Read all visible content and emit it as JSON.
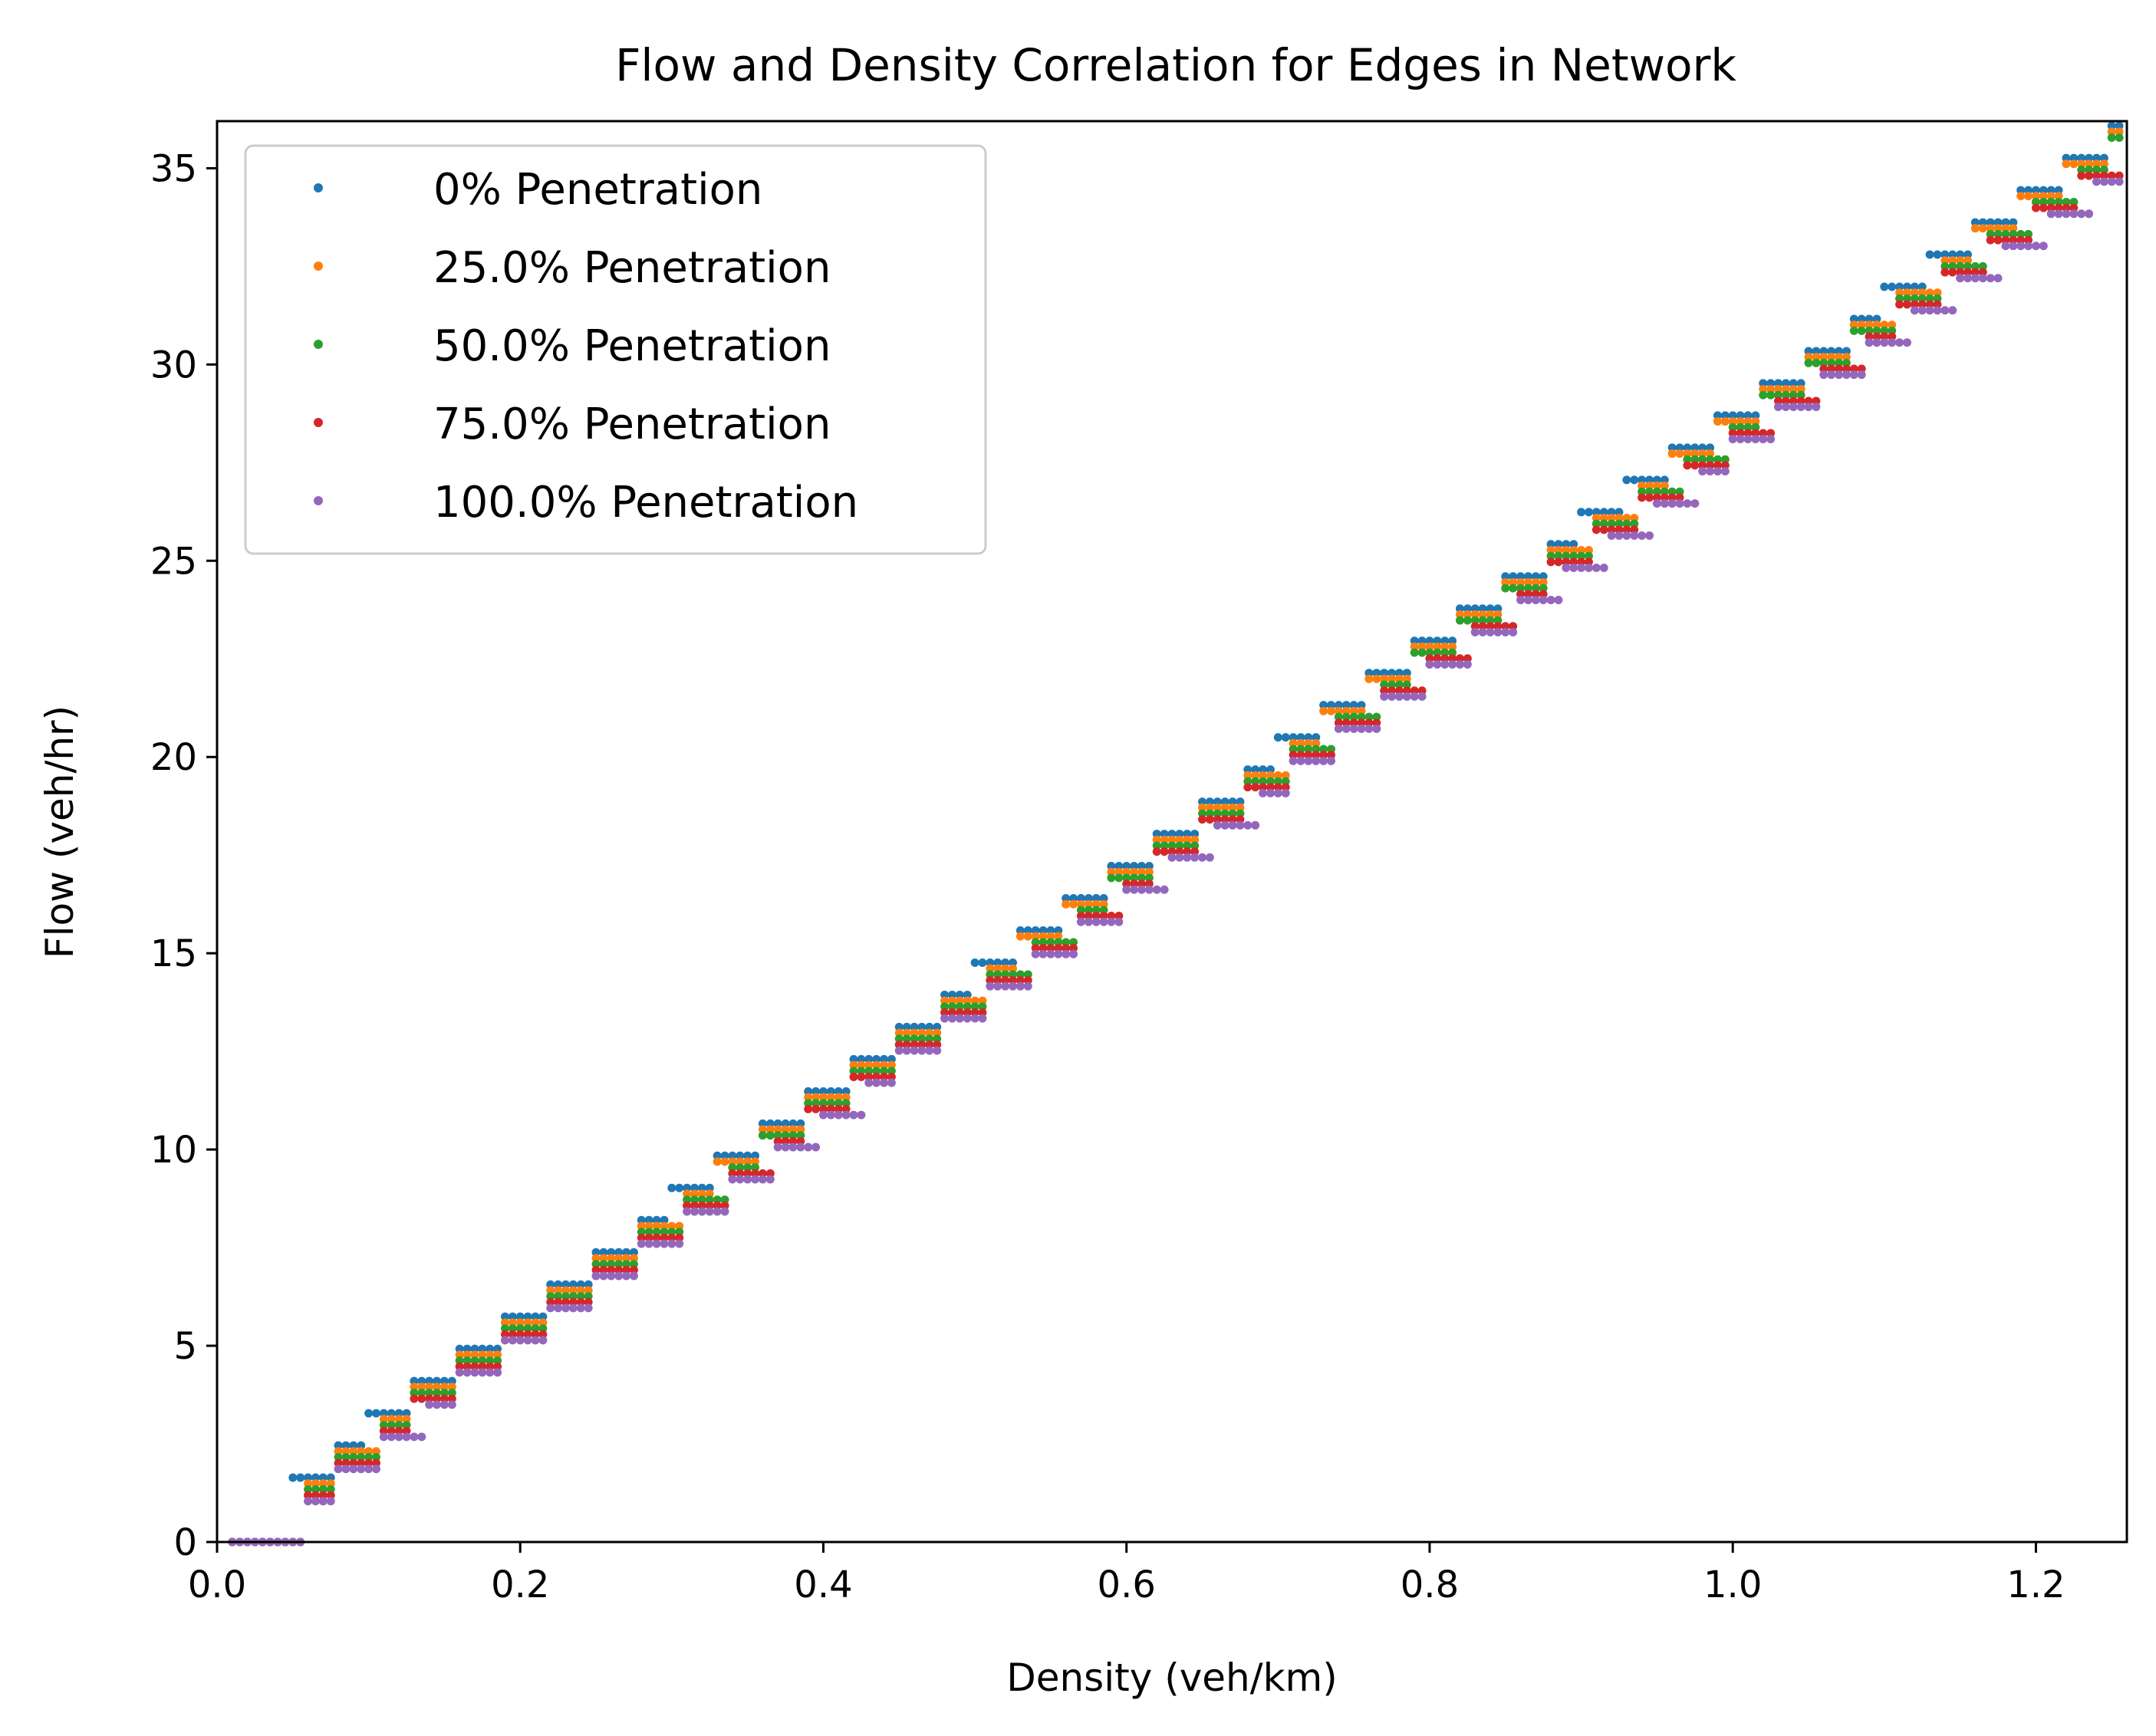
{
  "chart_data": {
    "type": "scatter",
    "title": "Flow and Density Correlation for Edges in Network",
    "xlabel": "Density (veh/km)",
    "ylabel": "Flow (veh/hr)",
    "xlim": [
      0,
      1.26
    ],
    "ylim": [
      0,
      36.2
    ],
    "xticks": [
      "0.0",
      "0.2",
      "0.4",
      "0.6",
      "0.8",
      "1.0",
      "1.2"
    ],
    "xtick_values": [
      0,
      0.2,
      0.4,
      0.6,
      0.8,
      1.0,
      1.2
    ],
    "yticks": [
      "0",
      "5",
      "10",
      "15",
      "20",
      "25",
      "30",
      "35"
    ],
    "ytick_values": [
      0,
      5,
      10,
      15,
      20,
      25,
      30,
      35
    ],
    "grid": false,
    "legend_position": "upper-left",
    "series": [
      {
        "name": "0% Penetration",
        "color": "#1f77b4",
        "slope": 28.72,
        "offset": 0.0,
        "x": [
          0.01,
          0.02,
          0.03,
          0.04,
          0.05,
          0.06,
          0.07,
          0.08,
          0.09,
          0.1,
          0.11,
          0.12,
          0.13,
          0.14,
          0.15,
          0.16,
          0.17,
          0.18,
          0.19,
          0.2,
          0.21,
          0.22,
          0.23,
          0.24,
          0.25,
          0.26,
          0.27,
          0.28,
          0.29,
          0.3,
          0.31,
          0.32,
          0.33,
          0.34,
          0.35,
          0.36,
          0.37,
          0.38,
          0.39,
          0.4,
          0.41,
          0.42,
          0.43,
          0.44,
          0.45,
          0.46,
          0.47,
          0.48,
          0.49,
          0.5,
          0.51,
          0.52,
          0.53,
          0.54,
          0.55,
          0.56,
          0.57,
          0.58,
          0.59,
          0.6,
          0.61,
          0.62,
          0.63,
          0.64,
          0.65,
          0.66,
          0.67,
          0.68,
          0.69,
          0.7,
          0.71,
          0.72,
          0.73,
          0.74,
          0.75,
          0.76,
          0.77,
          0.78,
          0.79,
          0.8,
          0.81,
          0.82,
          0.83,
          0.84,
          0.85,
          0.86,
          0.87,
          0.88,
          0.89,
          0.9,
          0.91,
          0.92,
          0.93,
          0.94,
          0.95,
          0.96,
          0.97,
          0.98,
          0.99,
          1.0,
          1.01,
          1.02,
          1.03,
          1.04,
          1.05,
          1.06,
          1.07,
          1.08,
          1.09,
          1.1,
          1.11,
          1.12,
          1.13,
          1.14,
          1.15,
          1.16,
          1.17,
          1.18,
          1.19,
          1.2,
          1.21,
          1.22,
          1.23,
          1.24,
          1.25
        ]
      },
      {
        "name": "25.0% Penetration",
        "color": "#ff7f0e",
        "slope": 28.65,
        "offset": 0.0,
        "x": [
          0.01,
          0.02,
          0.03,
          0.04,
          0.05,
          0.06,
          0.07,
          0.08,
          0.09,
          0.1,
          0.11,
          0.12,
          0.13,
          0.14,
          0.15,
          0.16,
          0.17,
          0.18,
          0.19,
          0.2,
          0.21,
          0.22,
          0.23,
          0.24,
          0.25,
          0.26,
          0.27,
          0.28,
          0.29,
          0.3,
          0.31,
          0.32,
          0.33,
          0.34,
          0.35,
          0.36,
          0.37,
          0.38,
          0.39,
          0.4,
          0.41,
          0.42,
          0.43,
          0.44,
          0.45,
          0.46,
          0.47,
          0.48,
          0.49,
          0.5,
          0.51,
          0.52,
          0.53,
          0.54,
          0.55,
          0.56,
          0.57,
          0.58,
          0.59,
          0.6,
          0.61,
          0.62,
          0.63,
          0.64,
          0.65,
          0.66,
          0.67,
          0.68,
          0.69,
          0.7,
          0.71,
          0.72,
          0.73,
          0.74,
          0.75,
          0.76,
          0.77,
          0.78,
          0.79,
          0.8,
          0.81,
          0.82,
          0.83,
          0.84,
          0.85,
          0.86,
          0.87,
          0.88,
          0.89,
          0.9,
          0.91,
          0.92,
          0.93,
          0.94,
          0.95,
          0.96,
          0.97,
          0.98,
          0.99,
          1.0,
          1.01,
          1.02,
          1.03,
          1.04,
          1.05,
          1.06,
          1.07,
          1.08,
          1.09,
          1.1,
          1.11,
          1.12,
          1.13,
          1.14,
          1.15,
          1.16,
          1.17,
          1.18,
          1.19,
          1.2,
          1.21,
          1.22,
          1.23,
          1.24,
          1.25
        ]
      },
      {
        "name": "50.0% Penetration",
        "color": "#2ca02c",
        "slope": 28.55,
        "offset": 0.0,
        "x": [
          0.01,
          0.02,
          0.03,
          0.04,
          0.05,
          0.06,
          0.07,
          0.08,
          0.09,
          0.1,
          0.11,
          0.12,
          0.13,
          0.14,
          0.15,
          0.16,
          0.17,
          0.18,
          0.19,
          0.2,
          0.21,
          0.22,
          0.23,
          0.24,
          0.25,
          0.26,
          0.27,
          0.28,
          0.29,
          0.3,
          0.31,
          0.32,
          0.33,
          0.34,
          0.35,
          0.36,
          0.37,
          0.38,
          0.39,
          0.4,
          0.41,
          0.42,
          0.43,
          0.44,
          0.45,
          0.46,
          0.47,
          0.48,
          0.49,
          0.5,
          0.51,
          0.52,
          0.53,
          0.54,
          0.55,
          0.56,
          0.57,
          0.58,
          0.59,
          0.6,
          0.61,
          0.62,
          0.63,
          0.64,
          0.65,
          0.66,
          0.67,
          0.68,
          0.69,
          0.7,
          0.71,
          0.72,
          0.73,
          0.74,
          0.75,
          0.76,
          0.77,
          0.78,
          0.79,
          0.8,
          0.81,
          0.82,
          0.83,
          0.84,
          0.85,
          0.86,
          0.87,
          0.88,
          0.89,
          0.9,
          0.91,
          0.92,
          0.93,
          0.94,
          0.95,
          0.96,
          0.97,
          0.98,
          0.99,
          1.0,
          1.01,
          1.02,
          1.03,
          1.04,
          1.05,
          1.06,
          1.07,
          1.08,
          1.09,
          1.1,
          1.11,
          1.12,
          1.13,
          1.14,
          1.15,
          1.16,
          1.17,
          1.18,
          1.19,
          1.2,
          1.21,
          1.22,
          1.23,
          1.24,
          1.25
        ]
      },
      {
        "name": "75.0% Penetration",
        "color": "#d62728",
        "slope": 28.45,
        "offset": 0.0,
        "x": [
          0.01,
          0.02,
          0.03,
          0.04,
          0.05,
          0.06,
          0.07,
          0.08,
          0.09,
          0.1,
          0.11,
          0.12,
          0.13,
          0.14,
          0.15,
          0.16,
          0.17,
          0.18,
          0.19,
          0.2,
          0.21,
          0.22,
          0.23,
          0.24,
          0.25,
          0.26,
          0.27,
          0.28,
          0.29,
          0.3,
          0.31,
          0.32,
          0.33,
          0.34,
          0.35,
          0.36,
          0.37,
          0.38,
          0.39,
          0.4,
          0.41,
          0.42,
          0.43,
          0.44,
          0.45,
          0.46,
          0.47,
          0.48,
          0.49,
          0.5,
          0.51,
          0.52,
          0.53,
          0.54,
          0.55,
          0.56,
          0.57,
          0.58,
          0.59,
          0.6,
          0.61,
          0.62,
          0.63,
          0.64,
          0.65,
          0.66,
          0.67,
          0.68,
          0.69,
          0.7,
          0.71,
          0.72,
          0.73,
          0.74,
          0.75,
          0.76,
          0.77,
          0.78,
          0.79,
          0.8,
          0.81,
          0.82,
          0.83,
          0.84,
          0.85,
          0.86,
          0.87,
          0.88,
          0.89,
          0.9,
          0.91,
          0.92,
          0.93,
          0.94,
          0.95,
          0.96,
          0.97,
          0.98,
          0.99,
          1.0,
          1.01,
          1.02,
          1.03,
          1.04,
          1.05,
          1.06,
          1.07,
          1.08,
          1.09,
          1.1,
          1.11,
          1.12,
          1.13,
          1.14,
          1.15,
          1.16,
          1.17,
          1.18,
          1.19,
          1.2,
          1.21,
          1.22,
          1.23,
          1.24,
          1.25
        ]
      },
      {
        "name": "100.0% Penetration",
        "color": "#9467bd",
        "slope": 28.3,
        "offset": 0.0,
        "x": [
          0.01,
          0.02,
          0.03,
          0.04,
          0.05,
          0.06,
          0.07,
          0.08,
          0.09,
          0.1,
          0.11,
          0.12,
          0.13,
          0.14,
          0.15,
          0.16,
          0.17,
          0.18,
          0.19,
          0.2,
          0.21,
          0.22,
          0.23,
          0.24,
          0.25,
          0.26,
          0.27,
          0.28,
          0.29,
          0.3,
          0.31,
          0.32,
          0.33,
          0.34,
          0.35,
          0.36,
          0.37,
          0.38,
          0.39,
          0.4,
          0.41,
          0.42,
          0.43,
          0.44,
          0.45,
          0.46,
          0.47,
          0.48,
          0.49,
          0.5,
          0.51,
          0.52,
          0.53,
          0.54,
          0.55,
          0.56,
          0.57,
          0.58,
          0.59,
          0.6,
          0.61,
          0.62,
          0.63,
          0.64,
          0.65,
          0.66,
          0.67,
          0.68,
          0.69,
          0.7,
          0.71,
          0.72,
          0.73,
          0.74,
          0.75,
          0.76,
          0.77,
          0.78,
          0.79,
          0.8,
          0.81,
          0.82,
          0.83,
          0.84,
          0.85,
          0.86,
          0.87,
          0.88,
          0.89,
          0.9,
          0.91,
          0.92,
          0.93,
          0.94,
          0.95,
          0.96,
          0.97,
          0.98,
          0.99,
          1.0,
          1.01,
          1.02,
          1.03,
          1.04,
          1.05,
          1.06,
          1.07,
          1.08,
          1.09,
          1.1,
          1.11,
          1.12,
          1.13,
          1.14,
          1.15,
          1.16,
          1.17,
          1.18,
          1.19,
          1.2,
          1.21,
          1.22,
          1.23,
          1.24,
          1.25
        ]
      }
    ]
  }
}
